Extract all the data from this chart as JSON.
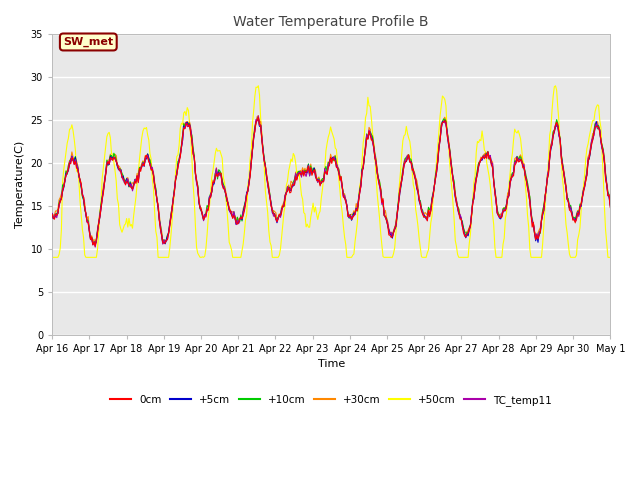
{
  "title": "Water Temperature Profile B",
  "xlabel": "Time",
  "ylabel": "Temperature(C)",
  "ylim": [
    0,
    35
  ],
  "yticks": [
    0,
    5,
    10,
    15,
    20,
    25,
    30,
    35
  ],
  "annotation_text": "SW_met",
  "annotation_bg": "#ffffcc",
  "annotation_border": "#8b0000",
  "annotation_text_color": "#8b0000",
  "line_colors": {
    "0cm": "#ff0000",
    "+5cm": "#0000cc",
    "+10cm": "#00cc00",
    "+30cm": "#ff8800",
    "+50cm": "#ffff00",
    "TC_temp11": "#aa00aa"
  },
  "legend_labels": [
    "0cm",
    "+5cm",
    "+10cm",
    "+30cm",
    "+50cm",
    "TC_temp11"
  ],
  "fig_bg": "#ffffff",
  "plot_bg": "#e8e8e8",
  "grid_color": "#ffffff",
  "date_labels": [
    "Apr 16",
    "Apr 17",
    "Apr 18",
    "Apr 19",
    "Apr 20",
    "Apr 21",
    "Apr 22",
    "Apr 23",
    "Apr 24",
    "Apr 25",
    "Apr 26",
    "Apr 27",
    "Apr 28",
    "Apr 29",
    "Apr 30",
    "May 1"
  ],
  "n_points": 480
}
